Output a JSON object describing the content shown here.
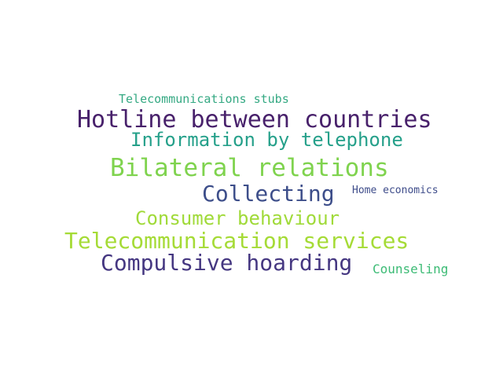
{
  "words": [
    {
      "text": "Telecommunications stubs",
      "color": "#35a983"
    },
    {
      "text": "Hotline between countries",
      "color": "#48216b"
    },
    {
      "text": "Information by telephone",
      "color": "#25a08a"
    },
    {
      "text": "Bilateral relations",
      "color": "#7fd34e"
    },
    {
      "text": "Collecting",
      "color": "#3d4e8a"
    },
    {
      "text": "Home economics",
      "color": "#3e4c8a"
    },
    {
      "text": "Consumer behaviour",
      "color": "#a0da39"
    },
    {
      "text": "Telecommunication services",
      "color": "#a5db36"
    },
    {
      "text": "Compulsive hoarding",
      "color": "#453781"
    },
    {
      "text": "Counseling",
      "color": "#3cbb75"
    }
  ]
}
